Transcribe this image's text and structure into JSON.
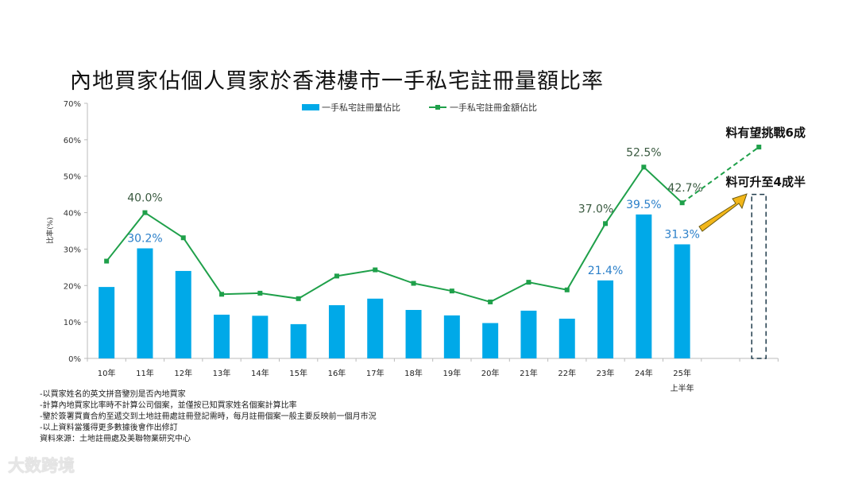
{
  "title": "內地買家佔個人買家於香港樓市一手私宅註冊量額比率",
  "chart_data": {
    "type": "bar+line",
    "title": "內地買家佔個人買家於香港樓市一手私宅註冊量額比率",
    "ylabel": "比率(%)",
    "ylim": [
      0,
      70
    ],
    "yticks": [
      "0%",
      "10%",
      "20%",
      "30%",
      "40%",
      "50%",
      "60%",
      "70%"
    ],
    "categories": [
      "10年",
      "11年",
      "12年",
      "13年",
      "14年",
      "15年",
      "16年",
      "17年",
      "18年",
      "19年",
      "20年",
      "21年",
      "22年",
      "23年",
      "24年",
      "25年"
    ],
    "category_sublabel": "上半年",
    "legend_position": "top",
    "series": [
      {
        "name": "一手私宅註冊量佔比",
        "type": "bar",
        "color": "#00a9e8",
        "values": [
          19.6,
          30.2,
          24.0,
          12.0,
          11.7,
          9.4,
          14.6,
          16.4,
          13.3,
          11.8,
          9.7,
          13.1,
          10.9,
          21.4,
          39.5,
          31.3
        ],
        "labels": {
          "1": "30.2%",
          "13": "21.4%",
          "14": "39.5%",
          "15": "31.3%"
        }
      },
      {
        "name": "一手私宅註冊金額佔比",
        "type": "line",
        "color": "#1fa04a",
        "values": [
          26.7,
          40.0,
          33.1,
          17.6,
          17.9,
          16.4,
          22.6,
          24.3,
          20.6,
          18.5,
          15.5,
          20.9,
          18.8,
          37.0,
          52.5,
          42.7
        ],
        "labels": {
          "1": "40.0%",
          "13": "37.0%",
          "14": "52.5%",
          "15": "42.7%"
        }
      }
    ],
    "projection": {
      "amount_value": 58,
      "amount_label": "料有望挑戰6成",
      "volume_label": "料可升至4成半",
      "volume_value": 45
    }
  },
  "notes": [
    "-以買家姓名的英文拼音鑒別是否內地買家",
    "-計算內地買家比率時不計算公司個案，並僅按已知買家姓名個案計算比率",
    "-鑒於簽署買賣合約至遞交到土地註冊處註冊登記需時，每月註冊個案一般主要反映前一個月市況",
    "-以上資料當獲得更多數據後會作出修訂",
    "資料來源：土地註冊處及美聯物業研究中心"
  ],
  "watermark": "大数跨境"
}
